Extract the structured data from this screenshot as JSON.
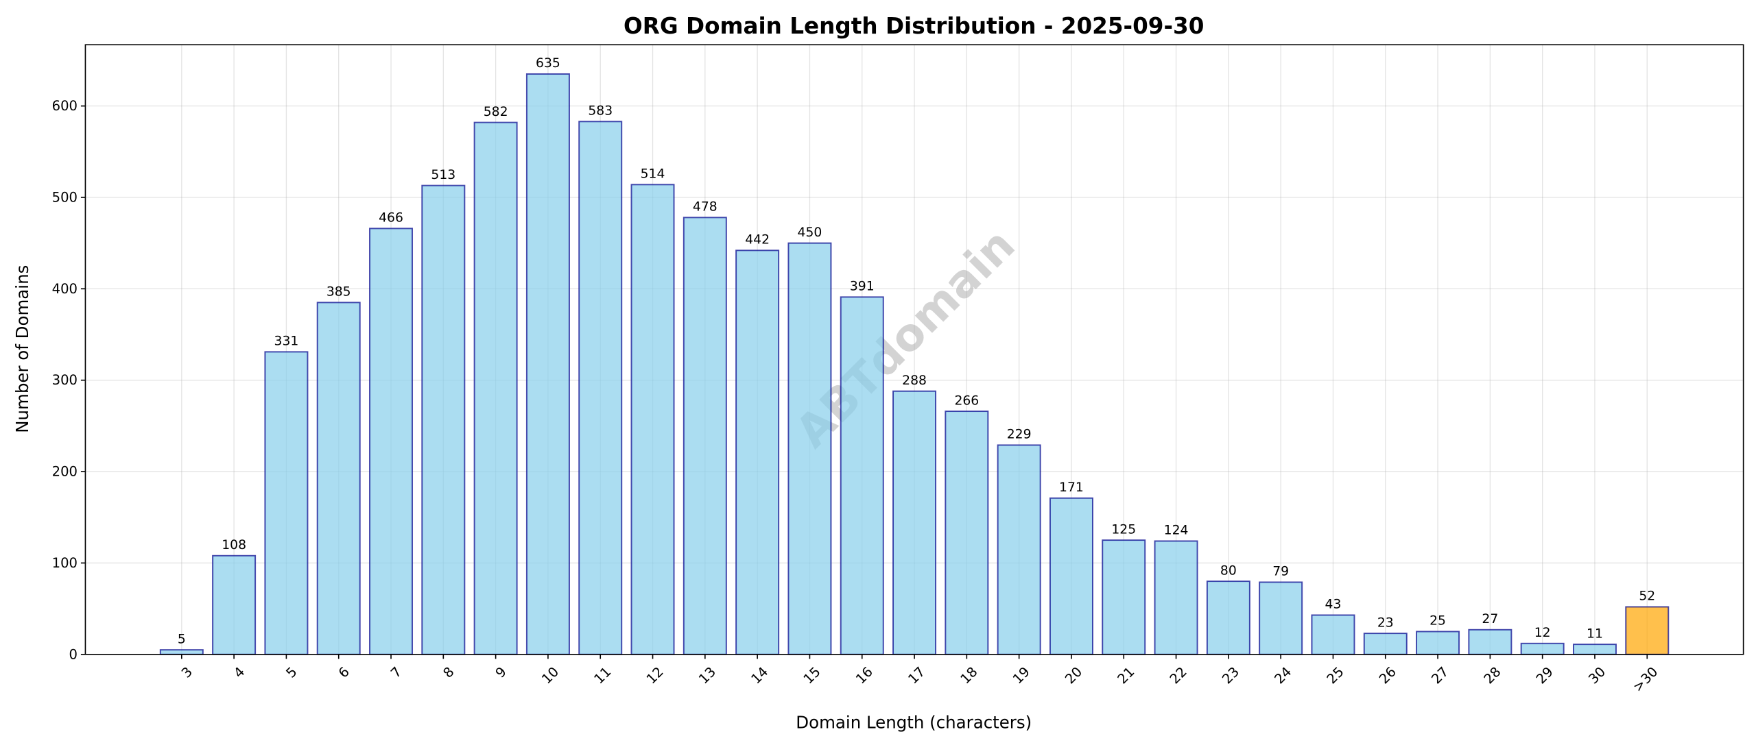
{
  "chart_data": {
    "type": "bar",
    "title": "ORG Domain Length Distribution - 2025-09-30",
    "xlabel": "Domain Length (characters)",
    "ylabel": "Number of Domains",
    "categories": [
      "3",
      "4",
      "5",
      "6",
      "7",
      "8",
      "9",
      "10",
      "11",
      "12",
      "13",
      "14",
      "15",
      "16",
      "17",
      "18",
      "19",
      "20",
      "21",
      "22",
      "23",
      "24",
      "25",
      "26",
      "27",
      "28",
      "29",
      "30",
      ">30"
    ],
    "values": [
      5,
      108,
      331,
      385,
      466,
      513,
      582,
      635,
      583,
      514,
      478,
      442,
      450,
      391,
      288,
      266,
      229,
      171,
      125,
      124,
      80,
      79,
      43,
      23,
      25,
      27,
      12,
      11,
      52
    ],
    "ylim": [
      0,
      667
    ],
    "yticks": [
      0,
      100,
      200,
      300,
      400,
      500,
      600
    ],
    "grid": true,
    "colors": {
      "bar": "#87ceeb",
      "bar_edge": "#00008b",
      "highlight": "#ffa500",
      "watermark": "#b0b0b0"
    },
    "highlight_category": ">30",
    "watermark": "ABTdomain"
  }
}
